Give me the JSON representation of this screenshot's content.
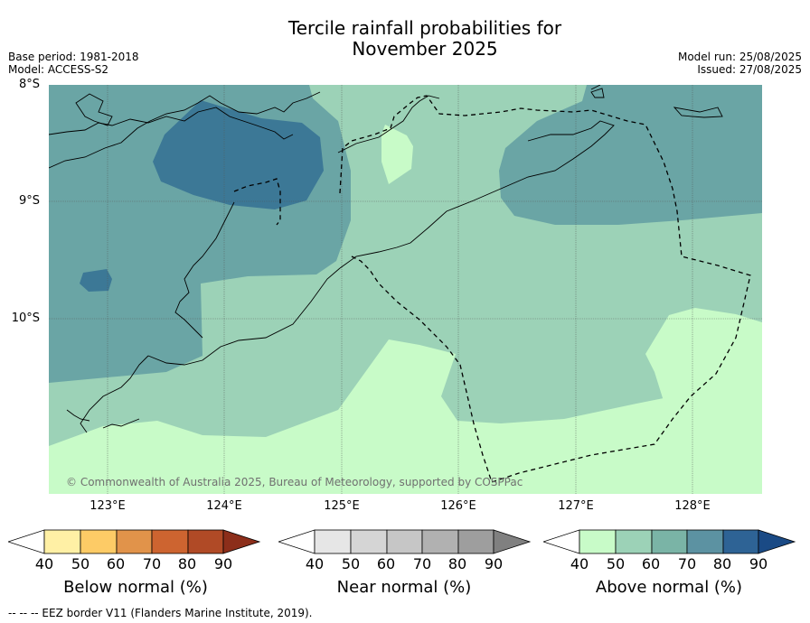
{
  "title_line1": "Tercile rainfall probabilities for",
  "title_line2": "November 2025",
  "meta_left": [
    "Base period: 1981-2018",
    "Model: ACCESS-S2"
  ],
  "meta_right": [
    "Model run: 25/08/2025",
    "Issued: 27/08/2025"
  ],
  "lat_labels": [
    "8°S",
    "9°S",
    "10°S"
  ],
  "lon_labels": [
    "123°E",
    "124°E",
    "125°E",
    "126°E",
    "127°E",
    "128°E"
  ],
  "copyright": "© Commonwealth of Australia 2025, Bureau of Meteorology, supported by COSPPac",
  "colorbars": [
    {
      "label": "Below normal (%)",
      "ticks": [
        "40",
        "50",
        "60",
        "70",
        "80",
        "90"
      ],
      "colors": [
        "#ffffff",
        "#fff0a5",
        "#fdcb66",
        "#e1934a",
        "#cd6430",
        "#b04a26",
        "#8c2e1a"
      ]
    },
    {
      "label": "Near normal (%)",
      "ticks": [
        "40",
        "50",
        "60",
        "70",
        "80",
        "90"
      ],
      "colors": [
        "#ffffff",
        "#e6e6e6",
        "#d5d5d5",
        "#c6c6c6",
        "#b1b1b1",
        "#9e9e9e",
        "#808080"
      ]
    },
    {
      "label": "Above normal (%)",
      "ticks": [
        "40",
        "50",
        "60",
        "70",
        "80",
        "90"
      ],
      "colors": [
        "#ffffff",
        "#c8fbc8",
        "#9cd2b7",
        "#7ab4a6",
        "#5c92a2",
        "#2e6395",
        "#1a4a85"
      ]
    }
  ],
  "footnote": "--  --  -- EEZ border V11 (Flanders Marine Institute, 2019).",
  "map_colors": {
    "above_50": "#c8fbc8",
    "above_60": "#9cd2b7",
    "above_70": "#6aa5a5",
    "above_80": "#3c7896"
  }
}
